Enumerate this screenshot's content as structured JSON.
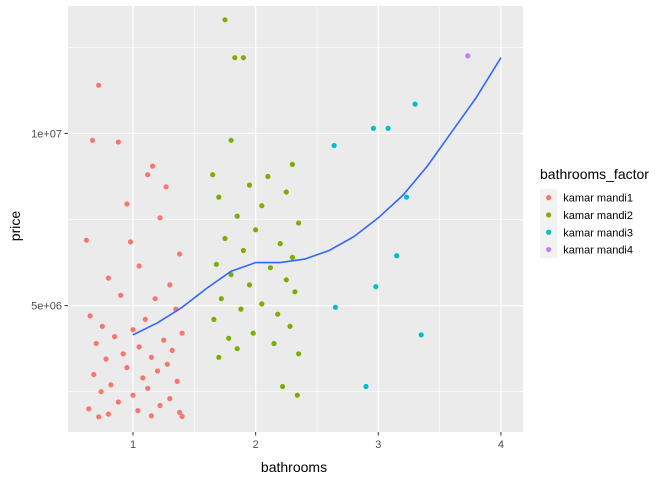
{
  "chart_data": {
    "type": "scatter",
    "xlabel": "bathrooms",
    "ylabel": "price",
    "xlim": [
      0.47,
      4.18
    ],
    "ylim": [
      1330000,
      13700000
    ],
    "x_ticks": [
      {
        "value": 1,
        "label": "1"
      },
      {
        "value": 2,
        "label": "2"
      },
      {
        "value": 3,
        "label": "3"
      },
      {
        "value": 4,
        "label": "4"
      }
    ],
    "y_ticks": [
      {
        "value": 5000000,
        "label": "5e+06"
      },
      {
        "value": 10000000,
        "label": "1e+07"
      }
    ],
    "x_minor_ticks": [
      1.5,
      2.5,
      3.5
    ],
    "y_minor_ticks": [
      2500000,
      7500000,
      12500000
    ],
    "grid": true,
    "legend": {
      "title": "bathrooms_factor",
      "placement": "right"
    },
    "series": [
      {
        "name": "kamar mandi1",
        "color": "#F8766D",
        "points": [
          [
            0.72,
            11400000
          ],
          [
            0.67,
            9800000
          ],
          [
            0.88,
            9750000
          ],
          [
            1.16,
            9050000
          ],
          [
            1.12,
            8800000
          ],
          [
            1.27,
            8450000
          ],
          [
            0.95,
            7950000
          ],
          [
            1.22,
            7550000
          ],
          [
            0.98,
            6850000
          ],
          [
            0.62,
            6900000
          ],
          [
            1.38,
            6500000
          ],
          [
            1.05,
            6150000
          ],
          [
            0.8,
            5800000
          ],
          [
            1.3,
            5600000
          ],
          [
            0.9,
            5300000
          ],
          [
            1.18,
            5200000
          ],
          [
            1.35,
            4900000
          ],
          [
            0.65,
            4700000
          ],
          [
            1.1,
            4600000
          ],
          [
            0.75,
            4400000
          ],
          [
            1.0,
            4300000
          ],
          [
            1.4,
            4200000
          ],
          [
            0.85,
            4100000
          ],
          [
            1.25,
            4000000
          ],
          [
            0.7,
            3900000
          ],
          [
            1.05,
            3800000
          ],
          [
            1.32,
            3700000
          ],
          [
            0.92,
            3600000
          ],
          [
            1.15,
            3500000
          ],
          [
            0.78,
            3450000
          ],
          [
            1.28,
            3300000
          ],
          [
            0.95,
            3200000
          ],
          [
            1.2,
            3100000
          ],
          [
            0.68,
            3000000
          ],
          [
            1.08,
            2900000
          ],
          [
            1.36,
            2800000
          ],
          [
            0.82,
            2700000
          ],
          [
            1.12,
            2600000
          ],
          [
            0.74,
            2500000
          ],
          [
            1.0,
            2400000
          ],
          [
            1.3,
            2300000
          ],
          [
            0.88,
            2200000
          ],
          [
            1.22,
            2100000
          ],
          [
            0.64,
            2000000
          ],
          [
            1.04,
            1950000
          ],
          [
            1.38,
            1900000
          ],
          [
            0.8,
            1850000
          ],
          [
            1.15,
            1800000
          ],
          [
            1.4,
            1780000
          ],
          [
            0.72,
            1770000
          ]
        ]
      },
      {
        "name": "kamar mandi2",
        "color": "#7CAE00",
        "points": [
          [
            1.75,
            13300000
          ],
          [
            1.83,
            12200000
          ],
          [
            1.9,
            12200000
          ],
          [
            1.8,
            9800000
          ],
          [
            2.3,
            9100000
          ],
          [
            1.65,
            8800000
          ],
          [
            2.1,
            8750000
          ],
          [
            1.95,
            8500000
          ],
          [
            2.25,
            8300000
          ],
          [
            1.7,
            8150000
          ],
          [
            2.05,
            7900000
          ],
          [
            1.85,
            7600000
          ],
          [
            2.35,
            7400000
          ],
          [
            2.0,
            7200000
          ],
          [
            1.75,
            6950000
          ],
          [
            2.2,
            6800000
          ],
          [
            1.9,
            6600000
          ],
          [
            2.3,
            6400000
          ],
          [
            1.68,
            6200000
          ],
          [
            2.12,
            6100000
          ],
          [
            1.8,
            5900000
          ],
          [
            2.25,
            5750000
          ],
          [
            1.95,
            5600000
          ],
          [
            2.32,
            5400000
          ],
          [
            1.72,
            5200000
          ],
          [
            2.05,
            5050000
          ],
          [
            1.88,
            4900000
          ],
          [
            2.18,
            4750000
          ],
          [
            1.66,
            4600000
          ],
          [
            2.28,
            4400000
          ],
          [
            1.98,
            4200000
          ],
          [
            1.78,
            4050000
          ],
          [
            2.15,
            3900000
          ],
          [
            1.85,
            3750000
          ],
          [
            2.35,
            3600000
          ],
          [
            1.7,
            3500000
          ],
          [
            2.22,
            2650000
          ],
          [
            2.34,
            2400000
          ]
        ]
      },
      {
        "name": "kamar mandi3",
        "color": "#00BFC4",
        "points": [
          [
            2.96,
            10150000
          ],
          [
            3.08,
            10150000
          ],
          [
            3.3,
            10850000
          ],
          [
            2.64,
            9650000
          ],
          [
            3.23,
            8150000
          ],
          [
            3.15,
            6450000
          ],
          [
            2.65,
            4950000
          ],
          [
            2.98,
            5550000
          ],
          [
            3.35,
            4150000
          ],
          [
            2.9,
            2650000
          ]
        ]
      },
      {
        "name": "kamar mandi4",
        "color": "#C77CFF",
        "points": [
          [
            3.73,
            12250000
          ]
        ]
      }
    ],
    "smooth": {
      "color": "#3366FF",
      "points": [
        [
          1.0,
          4150000
        ],
        [
          1.2,
          4500000
        ],
        [
          1.4,
          4950000
        ],
        [
          1.6,
          5500000
        ],
        [
          1.8,
          6000000
        ],
        [
          2.0,
          6250000
        ],
        [
          2.2,
          6250000
        ],
        [
          2.4,
          6350000
        ],
        [
          2.6,
          6600000
        ],
        [
          2.8,
          7000000
        ],
        [
          3.0,
          7550000
        ],
        [
          3.2,
          8200000
        ],
        [
          3.4,
          9050000
        ],
        [
          3.6,
          10050000
        ],
        [
          3.8,
          11050000
        ],
        [
          4.0,
          12200000
        ]
      ]
    }
  }
}
